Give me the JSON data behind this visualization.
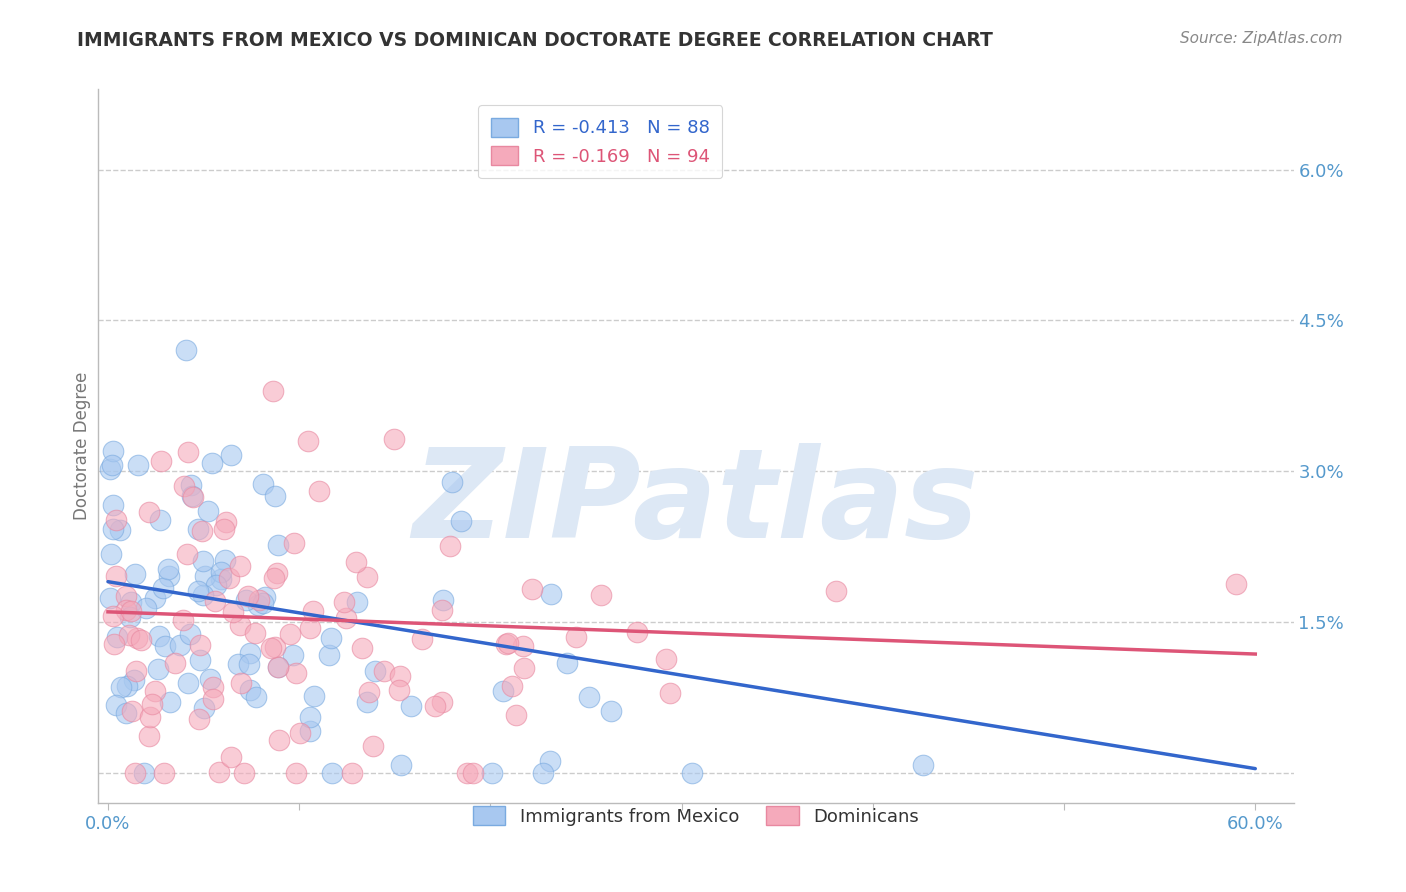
{
  "title": "IMMIGRANTS FROM MEXICO VS DOMINICAN DOCTORATE DEGREE CORRELATION CHART",
  "source": "Source: ZipAtlas.com",
  "ylabel": "Doctorate Degree",
  "xlim": [
    -0.005,
    0.62
  ],
  "ylim": [
    -0.003,
    0.068
  ],
  "ytick_vals": [
    0.0,
    0.015,
    0.03,
    0.045,
    0.06
  ],
  "ytick_labels_right": [
    "",
    "1.5%",
    "3.0%",
    "4.5%",
    "6.0%"
  ],
  "xtick_vals": [
    0.0,
    0.1,
    0.2,
    0.3,
    0.4,
    0.5,
    0.6
  ],
  "xtick_labels": [
    "0.0%",
    "",
    "",
    "",
    "",
    "",
    "60.0%"
  ],
  "legend_blue_label": "R = -0.413   N = 88",
  "legend_pink_label": "R = -0.169   N = 94",
  "legend_series1": "Immigrants from Mexico",
  "legend_series2": "Dominicans",
  "R_blue": -0.413,
  "N_blue": 88,
  "R_pink": -0.169,
  "N_pink": 94,
  "blue_color": "#a8c8f0",
  "pink_color": "#f5aabb",
  "blue_edge_color": "#7aaae0",
  "pink_edge_color": "#e888a0",
  "blue_line_color": "#3366cc",
  "pink_line_color": "#dd5577",
  "title_color": "#333333",
  "grid_color": "#cccccc",
  "axis_color": "#bbbbbb",
  "right_label_color": "#5599cc",
  "source_color": "#888888",
  "background_color": "#ffffff",
  "watermark_text": "ZIPatlas",
  "watermark_color": "#dde8f5",
  "blue_intercept": 0.019,
  "blue_slope": -0.031,
  "pink_intercept": 0.016,
  "pink_slope": -0.007
}
